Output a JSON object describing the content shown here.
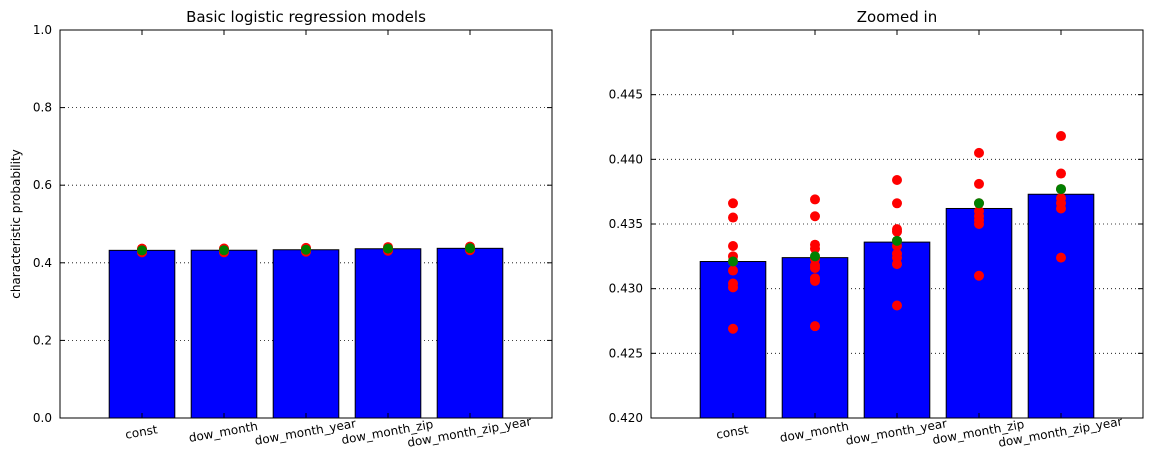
{
  "chart_data": [
    {
      "type": "bar",
      "title": "Basic logistic regression models",
      "xlabel": "",
      "ylabel": "characteristic probability",
      "categories": [
        "const",
        "dow_month",
        "dow_month_year",
        "dow_month_zip",
        "dow_month_zip_year"
      ],
      "values": [
        0.4321,
        0.4324,
        0.4336,
        0.4362,
        0.4373
      ],
      "ylim": [
        0.0,
        1.0
      ],
      "yticks": [
        "0.0",
        "0.2",
        "0.4",
        "0.6",
        "0.8",
        "1.0"
      ],
      "grid": "y-dotted",
      "colors": {
        "bar": "#0000ff",
        "points": "#ff0000",
        "mean": "#008000"
      },
      "points": [
        [
          0.4366,
          0.4355,
          0.4333,
          0.4325,
          0.4321,
          0.4314,
          0.4304,
          0.4301,
          0.4269
        ],
        [
          0.4369,
          0.4356,
          0.4334,
          0.4331,
          0.4323,
          0.4318,
          0.4316,
          0.4308,
          0.4306,
          0.4271
        ],
        [
          0.4384,
          0.4366,
          0.4346,
          0.4344,
          0.4337,
          0.4333,
          0.4327,
          0.4324,
          0.4319,
          0.4287
        ],
        [
          0.4405,
          0.4381,
          0.4366,
          0.436,
          0.4356,
          0.4353,
          0.435,
          0.431
        ],
        [
          0.4418,
          0.4389,
          0.4377,
          0.437,
          0.4366,
          0.4362,
          0.4324
        ]
      ],
      "means": [
        0.4321,
        0.4325,
        0.4337,
        0.4366,
        0.4377
      ]
    },
    {
      "type": "bar",
      "title": "Zoomed in",
      "xlabel": "",
      "ylabel": "",
      "categories": [
        "const",
        "dow_month",
        "dow_month_year",
        "dow_month_zip",
        "dow_month_zip_year"
      ],
      "values": [
        0.4321,
        0.4324,
        0.4336,
        0.4362,
        0.4373
      ],
      "ylim": [
        0.42,
        0.45
      ],
      "yticks": [
        "0.420",
        "0.425",
        "0.430",
        "0.435",
        "0.440",
        "0.445"
      ],
      "grid": "y-dotted",
      "colors": {
        "bar": "#0000ff",
        "points": "#ff0000",
        "mean": "#008000"
      },
      "points": [
        [
          0.4366,
          0.4355,
          0.4333,
          0.4325,
          0.4321,
          0.4314,
          0.4304,
          0.4301,
          0.4269
        ],
        [
          0.4369,
          0.4356,
          0.4334,
          0.4331,
          0.4323,
          0.4318,
          0.4316,
          0.4308,
          0.4306,
          0.4271
        ],
        [
          0.4384,
          0.4366,
          0.4346,
          0.4344,
          0.4337,
          0.4333,
          0.4327,
          0.4324,
          0.4319,
          0.4287
        ],
        [
          0.4405,
          0.4381,
          0.4366,
          0.436,
          0.4356,
          0.4353,
          0.435,
          0.431
        ],
        [
          0.4418,
          0.4389,
          0.4377,
          0.437,
          0.4366,
          0.4362,
          0.4324
        ]
      ],
      "means": [
        0.4321,
        0.4325,
        0.4337,
        0.4366,
        0.4377
      ]
    }
  ]
}
